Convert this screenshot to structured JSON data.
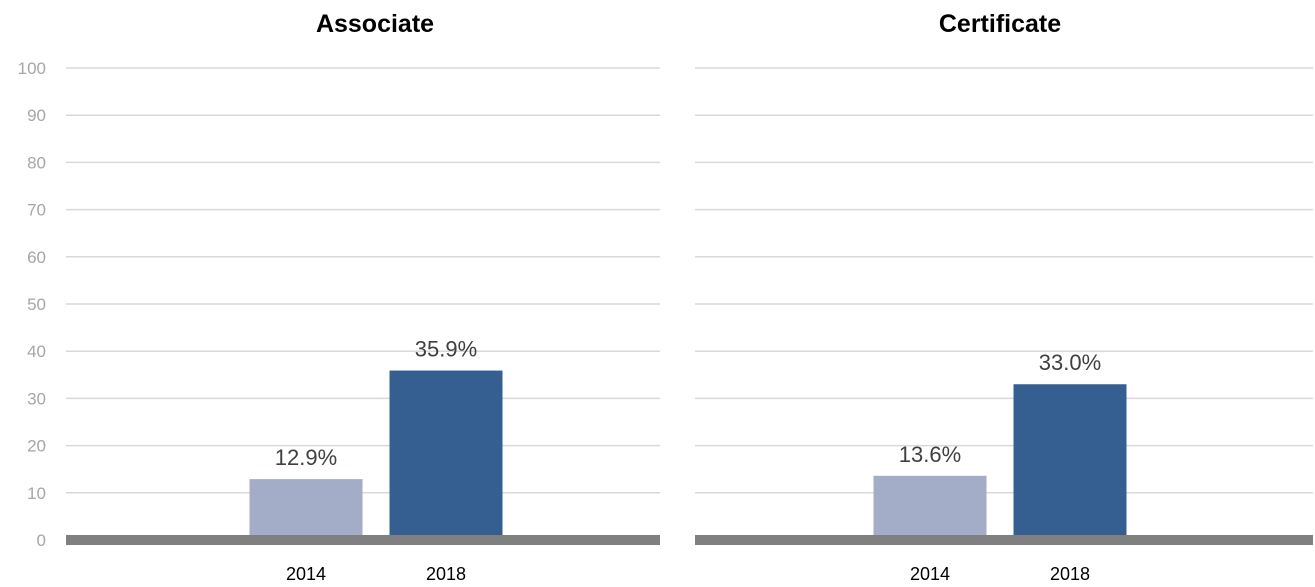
{
  "chart_data": [
    {
      "type": "bar",
      "title": "Associate",
      "categories": [
        "2014",
        "2018"
      ],
      "values": [
        12.9,
        35.9
      ],
      "data_labels": [
        "12.9%",
        "35.9%"
      ],
      "bar_colors": [
        "#a4adc8",
        "#355f91"
      ],
      "ylim": [
        0,
        100
      ],
      "yticks": [
        0,
        10,
        20,
        30,
        40,
        50,
        60,
        70,
        80,
        90,
        100
      ],
      "grid": true,
      "xlabel": "",
      "ylabel": ""
    },
    {
      "type": "bar",
      "title": "Certificate",
      "categories": [
        "2014",
        "2018"
      ],
      "values": [
        13.6,
        33.0
      ],
      "data_labels": [
        "13.6%",
        "33.0%"
      ],
      "bar_colors": [
        "#a4adc8",
        "#355f91"
      ],
      "ylim": [
        0,
        100
      ],
      "yticks": [],
      "grid": true,
      "xlabel": "",
      "ylabel": ""
    }
  ],
  "colors": {
    "gridline": "#d9d9d9",
    "baseline": "#808080",
    "ytick_text": "#a6a6a6",
    "label_text": "#404040"
  }
}
